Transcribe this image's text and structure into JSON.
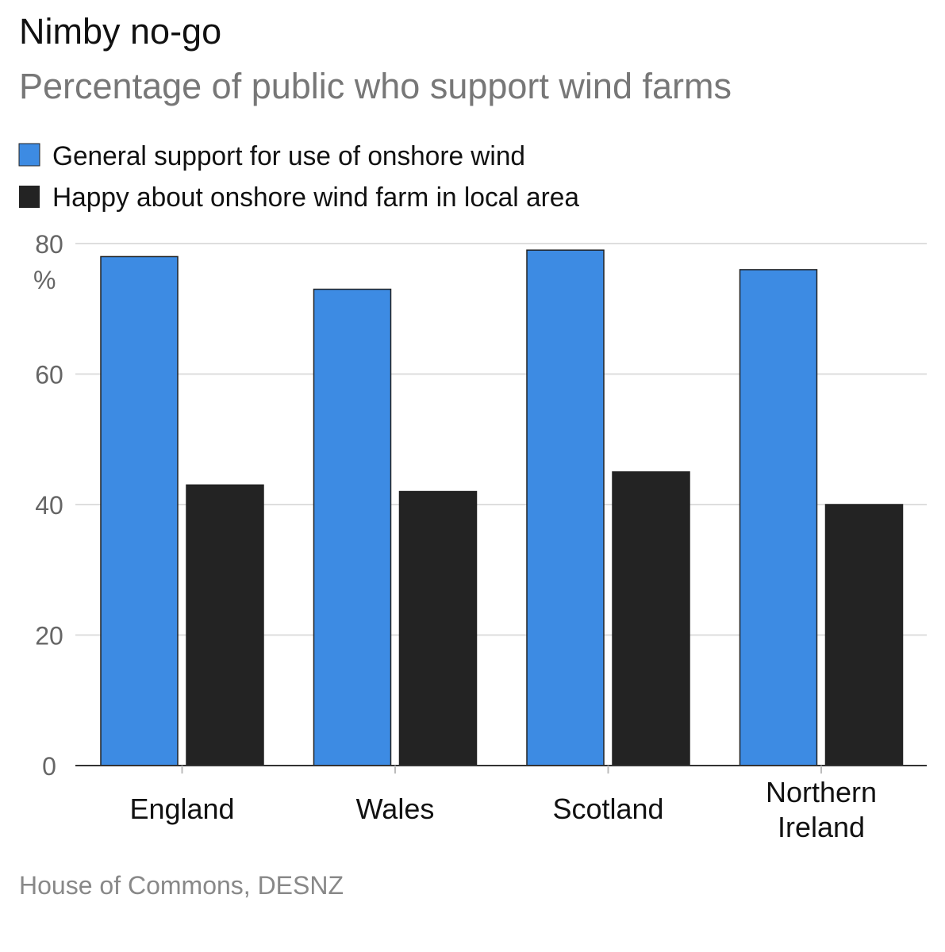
{
  "chart_data": {
    "type": "bar",
    "title": "Nimby no-go",
    "subtitle": "Percentage of public who support wind farms",
    "ylabel": "%",
    "ylim": [
      0,
      80
    ],
    "yticks": [
      "0",
      "20",
      "40",
      "60",
      "80"
    ],
    "grid": true,
    "legend_position": "top-left",
    "categories": [
      [
        "England"
      ],
      [
        "Wales"
      ],
      [
        "Scotland"
      ],
      [
        "Northern",
        "Ireland"
      ]
    ],
    "series": [
      {
        "name": "General support for use of onshore wind",
        "color": "#3d8be3",
        "values": [
          78,
          73,
          79,
          76
        ]
      },
      {
        "name": "Happy about onshore wind farm in local area",
        "color": "#232323",
        "values": [
          43,
          42,
          45,
          40
        ]
      }
    ],
    "source": "House of Commons, DESNZ"
  }
}
